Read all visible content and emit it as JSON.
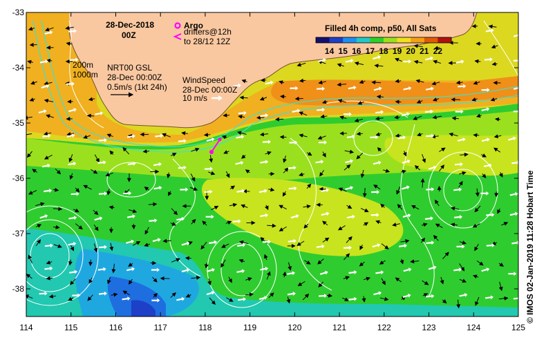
{
  "date_line": "28-Dec-2018",
  "hour_line": "00Z",
  "argo_label": "Argo",
  "drifters_line1": "drifters@12h",
  "drifters_line2": "to 28/12 12Z",
  "colorbar": {
    "title": "Filled 4h comp, p50, All Sats",
    "ticks": [
      "14",
      "15",
      "16",
      "17",
      "18",
      "19",
      "20",
      "21",
      "22"
    ],
    "colors": [
      "#101070",
      "#1e3fc8",
      "#1f8ef0",
      "#22c8c8",
      "#2bd02b",
      "#9be01e",
      "#f0e01e",
      "#f5a014",
      "#e05a0a",
      "#b01010"
    ]
  },
  "isobaths": {
    "line1": "200m",
    "line2": "1000m"
  },
  "current_key": {
    "line1": "NRT00 GSL",
    "line2": "28-Dec 00:00Z",
    "line3": "0.5m/s (1kt 24h)"
  },
  "wind_key": {
    "line1": "WindSpeed",
    "line2": "28-Dec 00:00Z",
    "line3": "10 m/s"
  },
  "axes": {
    "x_ticks": [
      "114",
      "115",
      "116",
      "117",
      "118",
      "119",
      "120",
      "121",
      "122",
      "123",
      "124",
      "125"
    ],
    "y_ticks": [
      "-33",
      "-34",
      "-35",
      "-36",
      "-37",
      "-38"
    ]
  },
  "credit": "© IMOS 02-Jan-2019 11:28 Hobart Time",
  "palette": {
    "land": "#fac8a0",
    "coast_current": "#40e0d0",
    "contour": "#ffffff"
  }
}
